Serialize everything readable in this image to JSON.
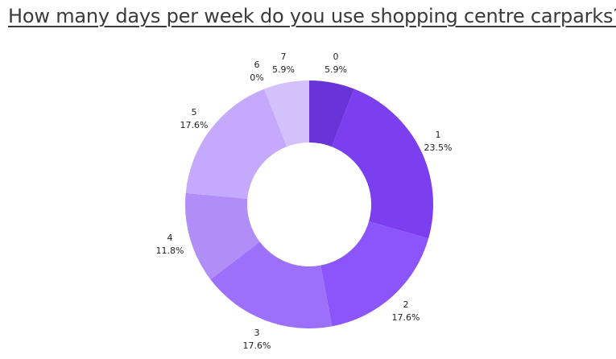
{
  "chart_data": {
    "type": "pie",
    "title": "How many days per week do you use shopping centre carparks?",
    "categories": [
      "0",
      "1",
      "2",
      "3",
      "4",
      "5",
      "6",
      "7"
    ],
    "values": [
      5.9,
      23.5,
      17.6,
      17.6,
      11.8,
      17.6,
      0,
      5.9
    ],
    "value_labels": [
      "5.9%",
      "23.5%",
      "17.6%",
      "17.6%",
      "11.8%",
      "17.6%",
      "0%",
      "5.9%"
    ],
    "colors": [
      "#6834d8",
      "#7b3ff0",
      "#8b55fb",
      "#9c70fa",
      "#b08df7",
      "#c5a9fd",
      "#d2c1fa",
      "#d2c1fa"
    ],
    "donut": true,
    "start_angle": "top",
    "direction": "clockwise",
    "legend": "none"
  }
}
